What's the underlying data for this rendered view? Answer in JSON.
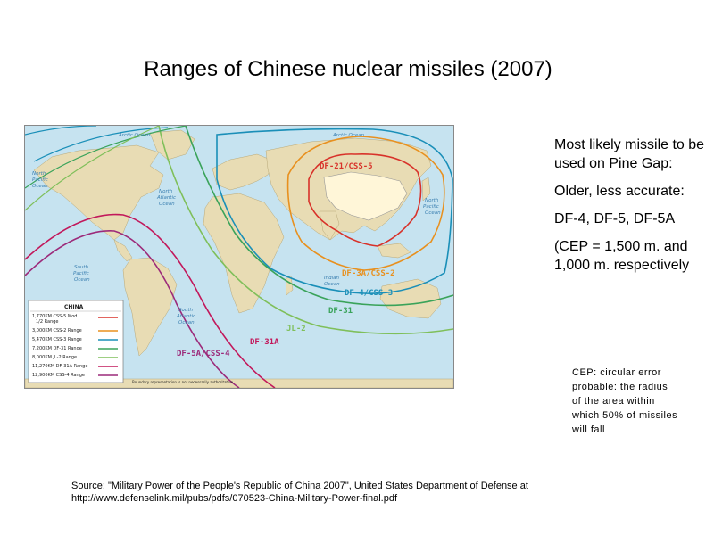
{
  "title": "Ranges of Chinese nuclear missiles (2007)",
  "map": {
    "ocean_labels": {
      "arctic_left": "Arctic Ocean",
      "arctic_right": "Arctic Ocean",
      "north_pacific_left_1": "North",
      "north_pacific_left_2": "Pacific",
      "north_pacific_left_3": "Ocean",
      "north_atlantic_1": "North",
      "north_atlantic_2": "Atlantic",
      "north_atlantic_3": "Ocean",
      "north_pacific_right_1": "North",
      "north_pacific_right_2": "Pacific",
      "north_pacific_right_3": "Ocean",
      "south_pacific_1": "South",
      "south_pacific_2": "Pacific",
      "south_pacific_3": "Ocean",
      "south_atlantic_1": "South",
      "south_atlantic_2": "Atlantic",
      "south_atlantic_3": "Ocean",
      "indian_1": "Indian",
      "indian_2": "Ocean"
    },
    "range_labels": {
      "df21": "DF-21/CSS-5",
      "df3a": "DF-3A/CSS-2",
      "df4": "DF-4/CSS-3",
      "df31": "DF-31",
      "jl2": "JL-2",
      "df31a": "DF-31A",
      "df5a": "DF-5A/CSS-4"
    },
    "colors": {
      "df21": "#d8322a",
      "df3a": "#e8901e",
      "df4": "#1a8fb8",
      "jl2": "#7fbf5a",
      "df31": "#3aa35a",
      "df31a": "#c2185b",
      "df5a": "#9c2a7a",
      "land": "#e8dcb4",
      "china": "#fff6d8",
      "ocean": "#c6e3f0"
    },
    "legend": {
      "heading": "CHINA",
      "items": [
        {
          "label": "1,770KM CSS-5 Mod",
          "label2": "1/2 Range",
          "color": "#d8322a"
        },
        {
          "label": "3,000KM CSS-2 Range",
          "color": "#e8901e"
        },
        {
          "label": "5,470KM CSS-3 Range",
          "color": "#1a8fb8"
        },
        {
          "label": "7,200KM DF-31 Range",
          "color": "#3aa35a"
        },
        {
          "label": "8,000KM JL-2 Range",
          "color": "#7fbf5a"
        },
        {
          "label": "11,270KM DF-31A Range",
          "color": "#c2185b"
        },
        {
          "label": "12,900KM CSS-4 Range",
          "color": "#9c2a7a"
        }
      ]
    },
    "disclaimer": "Boundary representation is not necessarily authoritative."
  },
  "side": {
    "p1": "Most likely missile to be used on Pine Gap:",
    "p2": "Older, less accurate:",
    "p3": "DF-4, DF-5, DF-5A",
    "p4": "(CEP = 1,500 m. and 1,000 m. respectively"
  },
  "cep_note": "CEP: circular error probable: the radius of the area within which 50% of missiles will fall",
  "source": "Source: \"Military Power of the People's Republic of China 2007\", United States Department of Defense at http://www.defenselink.mil/pubs/pdfs/070523-China-Military-Power-final.pdf"
}
